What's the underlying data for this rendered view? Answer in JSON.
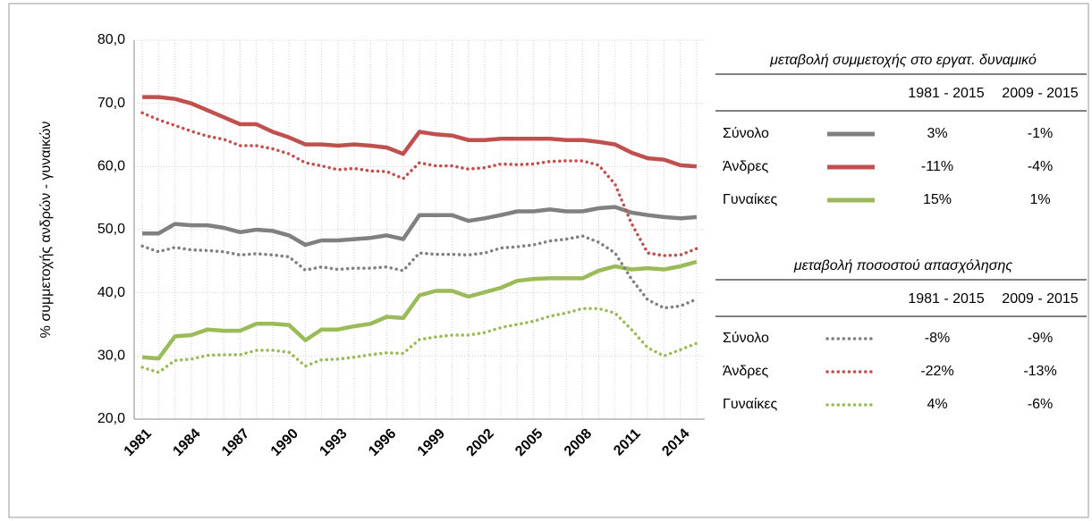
{
  "chart_data": {
    "type": "line",
    "y_label": "% συμμετοχής ανδρών - γυναικών",
    "categories": [
      "1981",
      null,
      null,
      "1984",
      null,
      null,
      "1987",
      null,
      null,
      "1990",
      null,
      null,
      "1993",
      null,
      null,
      "1996",
      null,
      null,
      "1999",
      null,
      null,
      "2002",
      null,
      null,
      "2005",
      null,
      null,
      "2008",
      null,
      null,
      "2011",
      null,
      null,
      "2014",
      null
    ],
    "ylim": [
      20,
      80
    ],
    "yticks": [
      {
        "value": 20,
        "label": "20,0"
      },
      {
        "value": 30,
        "label": "30,0"
      },
      {
        "value": 40,
        "label": "40,0"
      },
      {
        "value": 50,
        "label": "50,0"
      },
      {
        "value": 60,
        "label": "60,0"
      },
      {
        "value": 70,
        "label": "70,0"
      },
      {
        "value": 80,
        "label": "80,0"
      }
    ],
    "grid": true,
    "series": [
      {
        "color": "#808080",
        "dashed": false,
        "values": [
          49.4,
          49.4,
          50.9,
          50.7,
          50.7,
          50.3,
          49.6,
          50.0,
          49.8,
          49.1,
          47.6,
          48.3,
          48.3,
          48.5,
          48.7,
          49.1,
          48.5,
          52.3,
          52.3,
          52.3,
          51.4,
          51.8,
          52.3,
          52.9,
          52.9,
          53.2,
          52.9,
          52.9,
          53.4,
          53.6,
          52.7,
          52.3,
          52.0,
          51.8,
          52.0
        ]
      },
      {
        "color": "#c0504d",
        "dashed": false,
        "values": [
          71.0,
          71.0,
          70.7,
          70.0,
          68.9,
          67.8,
          66.7,
          66.7,
          65.5,
          64.6,
          63.5,
          63.5,
          63.3,
          63.5,
          63.3,
          63.0,
          62.0,
          65.5,
          65.1,
          64.9,
          64.2,
          64.2,
          64.4,
          64.4,
          64.4,
          64.4,
          64.2,
          64.2,
          63.9,
          63.5,
          62.2,
          61.3,
          61.1,
          60.2,
          60.0
        ]
      },
      {
        "color": "#9bbb59",
        "dashed": false,
        "values": [
          29.8,
          29.6,
          33.1,
          33.3,
          34.2,
          34.0,
          34.0,
          35.1,
          35.1,
          34.9,
          32.5,
          34.2,
          34.2,
          34.7,
          35.1,
          36.2,
          36.0,
          39.6,
          40.3,
          40.3,
          39.4,
          40.1,
          40.8,
          41.9,
          42.2,
          42.3,
          42.3,
          42.3,
          43.5,
          44.2,
          43.7,
          43.9,
          43.7,
          44.2,
          44.9
        ]
      },
      {
        "color": "#808080",
        "dashed": true,
        "values": [
          47.4,
          46.5,
          47.2,
          46.8,
          46.7,
          46.5,
          46.0,
          46.2,
          46.0,
          45.7,
          43.6,
          44.1,
          43.7,
          43.9,
          43.9,
          44.1,
          43.5,
          46.3,
          46.1,
          46.1,
          46.0,
          46.3,
          47.1,
          47.3,
          47.6,
          48.2,
          48.5,
          49.0,
          48.0,
          46.3,
          42.2,
          38.9,
          37.6,
          37.9,
          39.0
        ]
      },
      {
        "color": "#c0504d",
        "dashed": true,
        "values": [
          68.5,
          67.4,
          66.5,
          65.6,
          64.8,
          64.3,
          63.3,
          63.3,
          62.8,
          62.0,
          60.6,
          60.1,
          59.5,
          59.7,
          59.3,
          59.2,
          58.1,
          60.6,
          60.1,
          60.1,
          59.6,
          59.8,
          60.4,
          60.3,
          60.4,
          60.8,
          60.9,
          60.9,
          60.2,
          57.2,
          51.0,
          46.3,
          45.9,
          46.0,
          47.0
        ]
      },
      {
        "color": "#9bbb59",
        "dashed": true,
        "values": [
          28.2,
          27.4,
          29.3,
          29.5,
          30.1,
          30.2,
          30.2,
          30.9,
          30.9,
          30.6,
          28.4,
          29.4,
          29.5,
          29.8,
          30.2,
          30.5,
          30.4,
          32.6,
          33.0,
          33.3,
          33.3,
          33.7,
          34.5,
          35.0,
          35.5,
          36.3,
          36.8,
          37.5,
          37.5,
          36.8,
          34.2,
          31.3,
          30.0,
          31.0,
          32.0
        ]
      }
    ],
    "tables": [
      {
        "title": "μεταβολή συμμετοχής στο εργατ. δυναμικό",
        "dashed": false,
        "columns": [
          "1981 - 2015",
          "2009 - 2015"
        ],
        "rows": [
          {
            "label": "Σύνολο",
            "label_color": "#808080",
            "color": "#808080",
            "cells": [
              "3%",
              "-1%"
            ]
          },
          {
            "label": "Άνδρες",
            "label_color": "#c0504d",
            "color": "#c0504d",
            "cells": [
              "-11%",
              "-4%"
            ]
          },
          {
            "label": "Γυναίκες",
            "label_color": "#4f6228",
            "color": "#9bbb59",
            "cells": [
              "15%",
              "1%"
            ]
          }
        ]
      },
      {
        "title": "μεταβολή ποσοστού απασχόλησης",
        "dashed": true,
        "columns": [
          "1981 - 2015",
          "2009 - 2015"
        ],
        "rows": [
          {
            "label": "Σύνολο",
            "label_color": "#808080",
            "color": "#808080",
            "cells": [
              "-8%",
              "-9%"
            ]
          },
          {
            "label": "Άνδρες",
            "label_color": "#c0504d",
            "color": "#c0504d",
            "cells": [
              "-22%",
              "-13%"
            ]
          },
          {
            "label": "Γυναίκες",
            "label_color": "#4f6228",
            "color": "#9bbb59",
            "cells": [
              "4%",
              "-6%"
            ]
          }
        ]
      }
    ]
  }
}
